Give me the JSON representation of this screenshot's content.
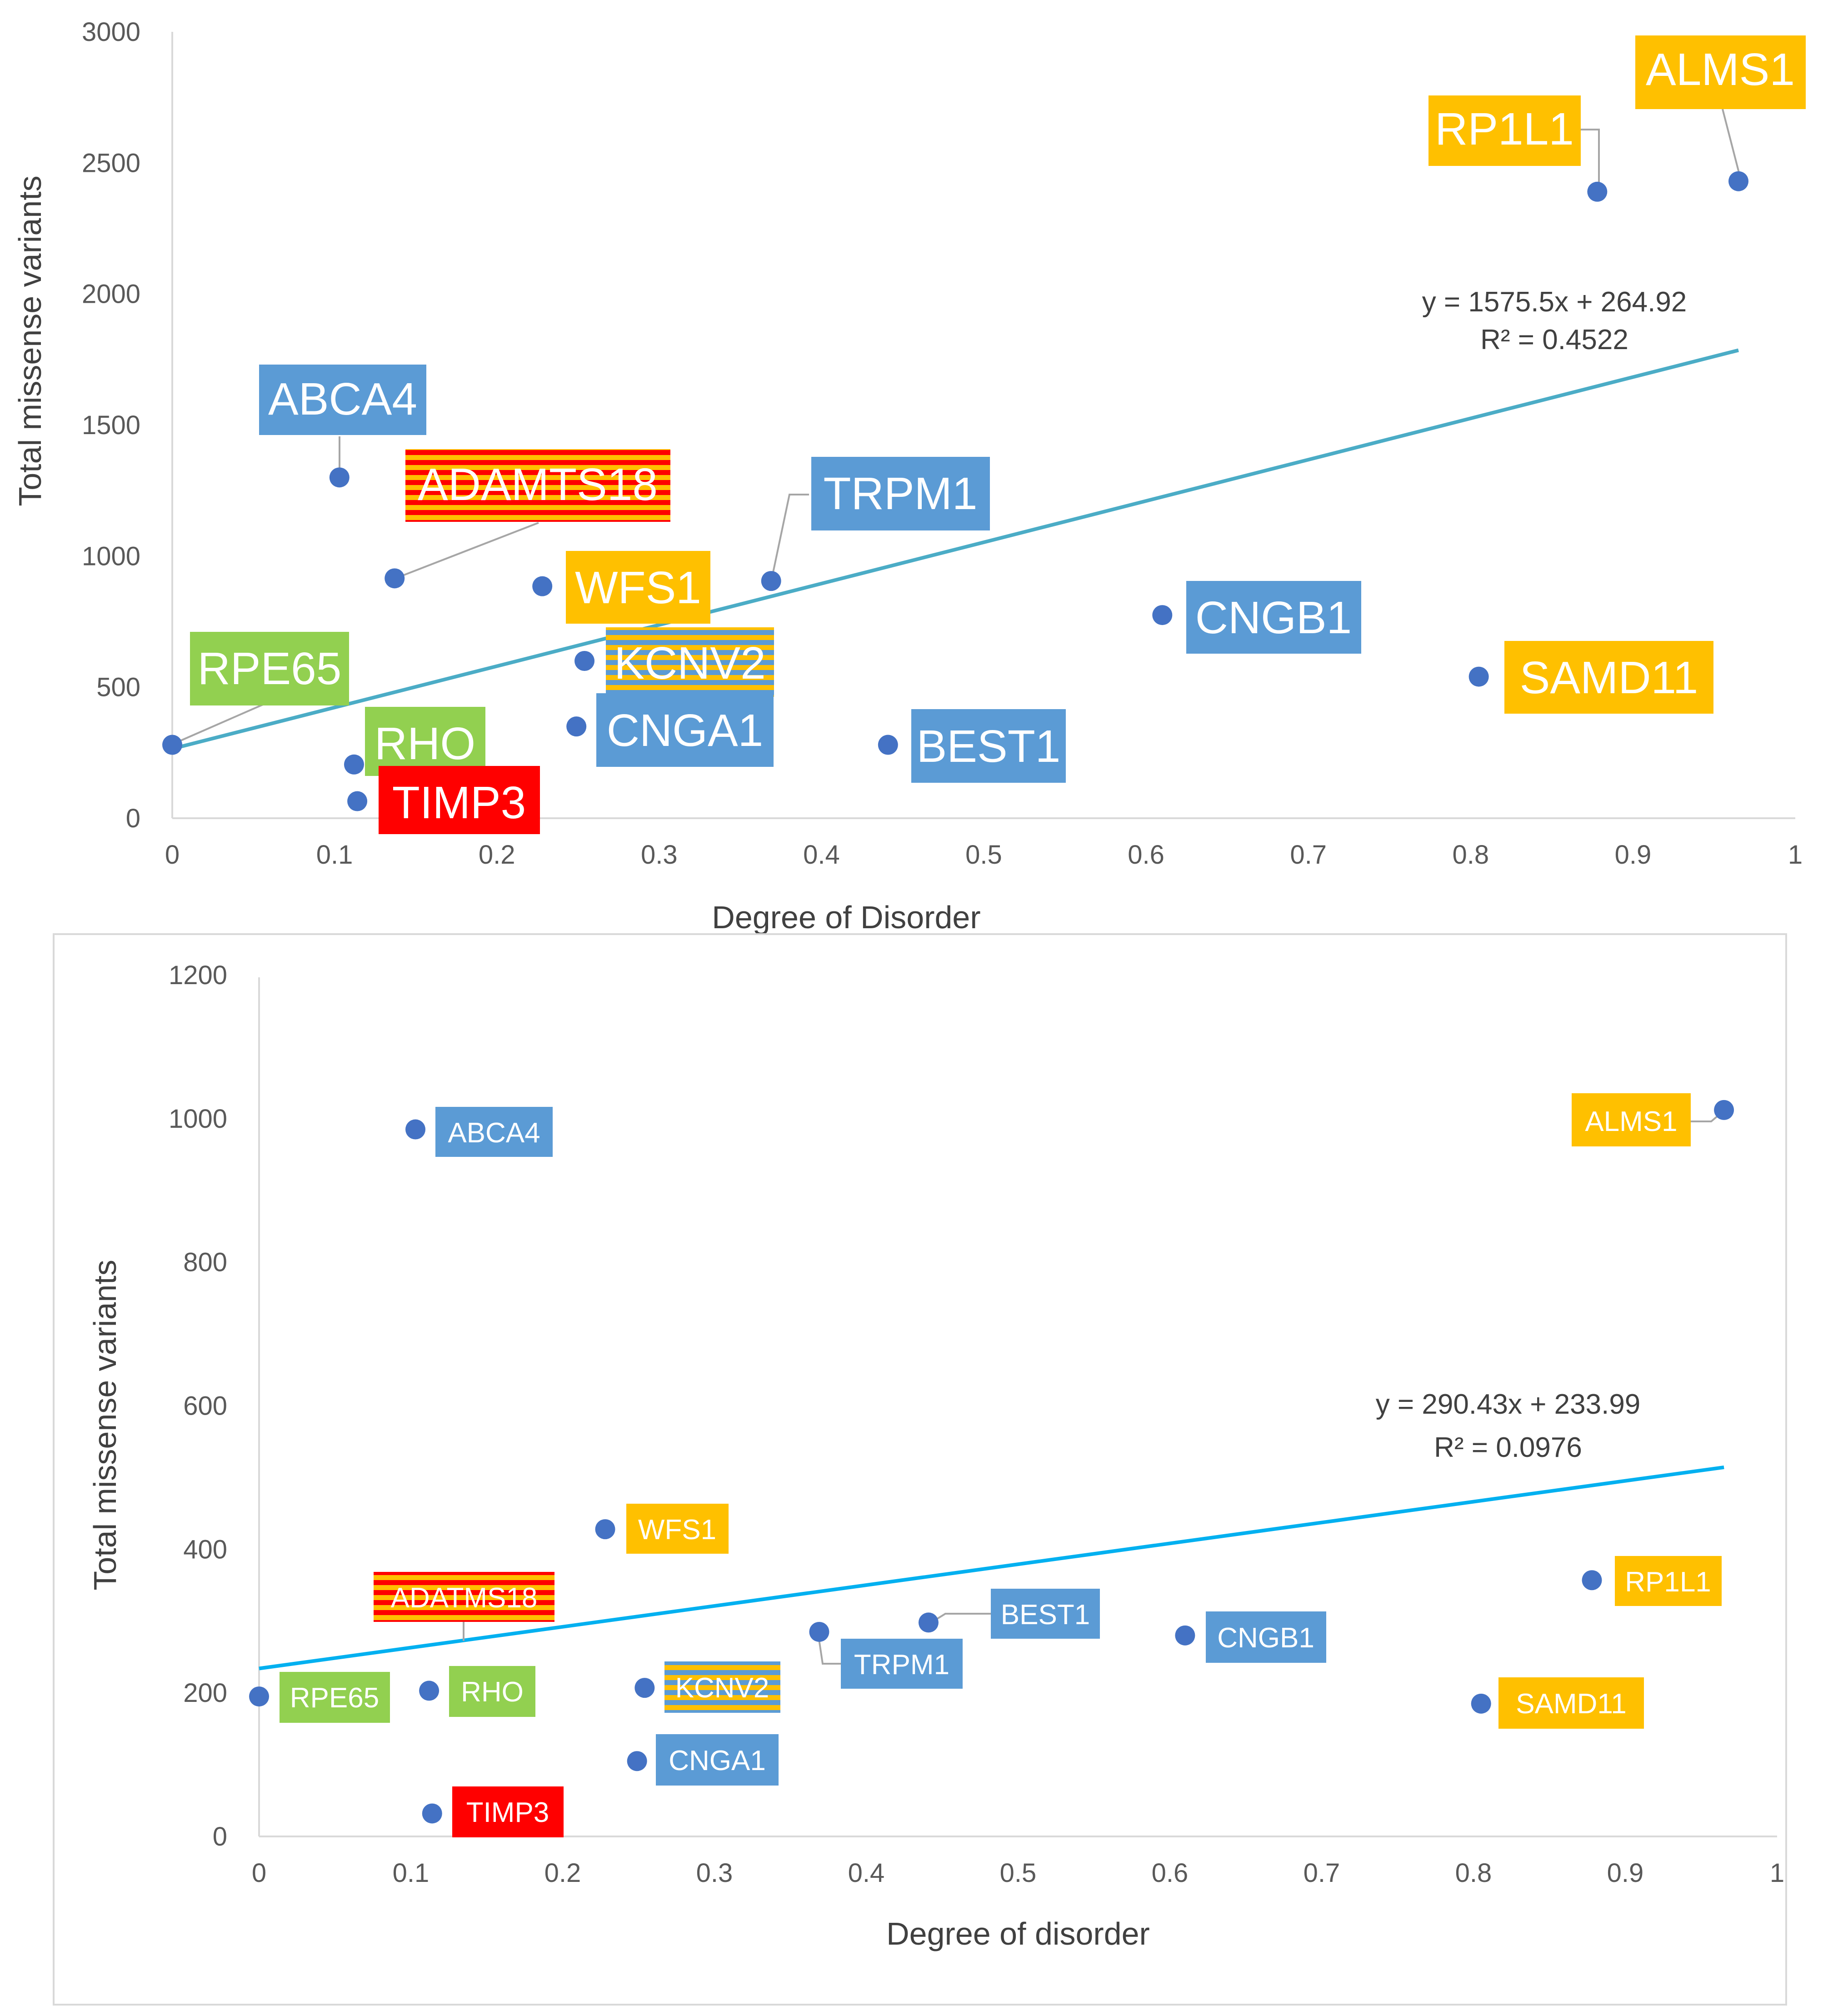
{
  "colors": {
    "yellow": "#FFC000",
    "blue": "#5B9BD5",
    "green": "#92D050",
    "red": "#FF0000",
    "point": "#4472C4",
    "trend_top": "#4BACC6",
    "trend_bottom": "#00B0F0",
    "axis": "#D9D9D9"
  },
  "chart_data": [
    {
      "type": "scatter",
      "title": "",
      "xlabel": "Degree of Disorder",
      "ylabel": "Total missense variants",
      "xlim": [
        0,
        1
      ],
      "ylim": [
        0,
        3000
      ],
      "xticks": [
        "0",
        "0.1",
        "0.2",
        "0.3",
        "0.4",
        "0.5",
        "0.6",
        "0.7",
        "0.8",
        "0.9",
        "1"
      ],
      "yticks": [
        "0",
        "500",
        "1000",
        "1500",
        "2000",
        "2500",
        "3000"
      ],
      "grid": false,
      "trendline": {
        "slope": 1575.5,
        "intercept": 264.92,
        "x_range": [
          0,
          0.965
        ],
        "equation": "y = 1575.5x + 264.92",
        "r2": "R² = 0.4522"
      },
      "points": [
        {
          "gene": "ALMS1",
          "x": 0.965,
          "y": 2430,
          "category": "yellow"
        },
        {
          "gene": "RP1L1",
          "x": 0.878,
          "y": 2390,
          "category": "yellow"
        },
        {
          "gene": "ABCA4",
          "x": 0.103,
          "y": 1300,
          "category": "blue"
        },
        {
          "gene": "ADAMTS18",
          "x": 0.137,
          "y": 915,
          "category": "striped-red"
        },
        {
          "gene": "TRPM1",
          "x": 0.369,
          "y": 905,
          "category": "blue"
        },
        {
          "gene": "WFS1",
          "x": 0.228,
          "y": 885,
          "category": "yellow"
        },
        {
          "gene": "CNGB1",
          "x": 0.61,
          "y": 775,
          "category": "blue"
        },
        {
          "gene": "KCNV2",
          "x": 0.254,
          "y": 600,
          "category": "striped-blue"
        },
        {
          "gene": "SAMD11",
          "x": 0.805,
          "y": 540,
          "category": "yellow"
        },
        {
          "gene": "CNGA1",
          "x": 0.249,
          "y": 350,
          "category": "blue"
        },
        {
          "gene": "BEST1",
          "x": 0.441,
          "y": 280,
          "category": "blue"
        },
        {
          "gene": "RPE65",
          "x": 0.0,
          "y": 280,
          "category": "green"
        },
        {
          "gene": "RHO",
          "x": 0.112,
          "y": 205,
          "category": "green"
        },
        {
          "gene": "TIMP3",
          "x": 0.114,
          "y": 65,
          "category": "red"
        }
      ]
    },
    {
      "type": "scatter",
      "title": "",
      "xlabel": "Degree of disorder",
      "ylabel": "Total missense variants",
      "xlim": [
        0,
        1
      ],
      "ylim": [
        0,
        1200
      ],
      "xticks": [
        "0",
        "0.1",
        "0.2",
        "0.3",
        "0.4",
        "0.5",
        "0.6",
        "0.7",
        "0.8",
        "0.9",
        "1"
      ],
      "yticks": [
        "0",
        "200",
        "400",
        "600",
        "800",
        "1000",
        "1200"
      ],
      "grid": false,
      "trendline": {
        "slope": 290.43,
        "intercept": 233.99,
        "x_range": [
          0,
          0.965
        ],
        "equation": "y = 290.43x + 233.99",
        "r2": "R² = 0.0976"
      },
      "points": [
        {
          "gene": "ALMS1",
          "x": 0.965,
          "y": 1012,
          "category": "yellow"
        },
        {
          "gene": "ABCA4",
          "x": 0.103,
          "y": 985,
          "category": "blue"
        },
        {
          "gene": "WFS1",
          "x": 0.228,
          "y": 428,
          "category": "yellow"
        },
        {
          "gene": "RP1L1",
          "x": 0.878,
          "y": 357,
          "category": "yellow"
        },
        {
          "gene": "BEST1",
          "x": 0.441,
          "y": 298,
          "category": "blue"
        },
        {
          "gene": "TRPM1",
          "x": 0.369,
          "y": 285,
          "category": "blue"
        },
        {
          "gene": "CNGB1",
          "x": 0.61,
          "y": 280,
          "category": "blue"
        },
        {
          "gene": "KCNV2",
          "x": 0.254,
          "y": 207,
          "category": "striped-blue"
        },
        {
          "gene": "ADATMS18",
          "x": 0.112,
          "y": 203,
          "category": "striped-red"
        },
        {
          "gene": "RHO",
          "x": 0.112,
          "y": 203,
          "category": "green"
        },
        {
          "gene": "RPE65",
          "x": 0.0,
          "y": 195,
          "category": "green"
        },
        {
          "gene": "SAMD11",
          "x": 0.805,
          "y": 185,
          "category": "yellow"
        },
        {
          "gene": "CNGA1",
          "x": 0.249,
          "y": 105,
          "category": "blue"
        },
        {
          "gene": "TIMP3",
          "x": 0.114,
          "y": 32,
          "category": "red"
        }
      ]
    }
  ]
}
